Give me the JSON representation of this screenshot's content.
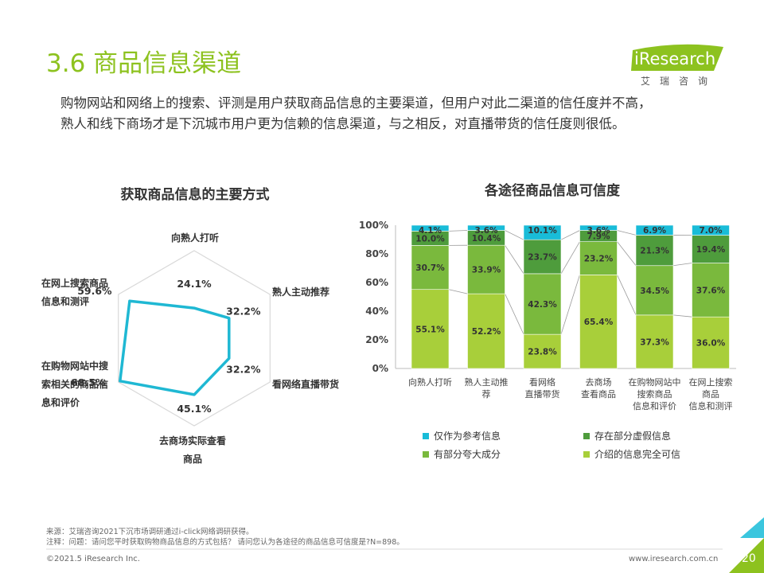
{
  "page": {
    "title": "3.6 商品信息渠道",
    "logo": {
      "word": "iResearch",
      "cn": "艾瑞咨询"
    },
    "description": [
      "购物网站和网络上的搜索、评测是用户获取商品信息的主要渠道，但用户对此二渠道的信任度并不高，",
      "熟人和线下商场才是下沉城市用户更为信赖的信息渠道，与之相反，对直播带货的信任度则很低。"
    ],
    "source": "来源：艾瑞咨询2021下沉市场调研通过i-click网络调研获得。",
    "note": "注释：问题：请问您平时获取购物商品信息的方式包括？ 请问您认为各途径的商品信息可信度是?N=898。",
    "copyright": "©2021.5 iResearch Inc.",
    "website": "www.iresearch.com.cn",
    "page_number": "20"
  },
  "colors": {
    "title_green": "#8dc21f",
    "radar_line": "#1fb8d3",
    "cyan": "#19bcd8",
    "dark_green": "#4e9c3c",
    "mid_green": "#7ab93d",
    "light_green": "#a8cf3a",
    "grid": "#d9d9d9"
  },
  "chart_data": [
    {
      "type": "radar",
      "title": "获取商品信息的主要方式",
      "axes": [
        "向熟人打听",
        "熟人主动推荐",
        "看网络直播带货",
        "去商场实际查看商品",
        "在购物网站中搜索相关的商品信息和评价",
        "在网上搜索商品信息和测评"
      ],
      "values": [
        24.1,
        32.2,
        32.2,
        45.1,
        68.5,
        59.6
      ],
      "value_labels": [
        "24.1%",
        "32.2%",
        "32.2%",
        "45.1%",
        "68.5%",
        "59.6%"
      ],
      "axis_label_lines": [
        [
          "向熟人打听"
        ],
        [
          "熟人主动推荐"
        ],
        [
          "看网络直播带货"
        ],
        [
          "去商场实际查看",
          "商品"
        ],
        [
          "在购物网站中搜",
          "索相关的商品信",
          "息和评价"
        ],
        [
          "在网上搜索商品",
          "信息和测评"
        ]
      ],
      "rmax": 70
    },
    {
      "type": "bar",
      "stacked": true,
      "title": "各途径商品信息可信度",
      "categories": [
        "向熟人打听",
        "熟人主动推荐",
        "看网络直播带货",
        "去商场查看商品",
        "在购物网站中搜索商品信息和评价",
        "在网上搜索商品信息和测评"
      ],
      "category_label_lines": [
        [
          "向熟人打听"
        ],
        [
          "熟人主动推",
          "荐"
        ],
        [
          "看网络",
          "直播带货"
        ],
        [
          "去商场",
          "查看商品"
        ],
        [
          "在购物网站中",
          "搜索商品",
          "信息和评价"
        ],
        [
          "在网上搜索",
          "商品",
          "信息和测评"
        ]
      ],
      "series": [
        {
          "name": "介绍的信息完全可信",
          "values": [
            55.1,
            52.2,
            23.8,
            65.4,
            37.3,
            36.0
          ],
          "labels": [
            "55.1%",
            "52.2%",
            "23.8%",
            "65.4%",
            "37.3%",
            "36.0%"
          ]
        },
        {
          "name": "有部分夸大成分",
          "values": [
            30.7,
            33.9,
            42.3,
            23.2,
            34.5,
            37.6
          ],
          "labels": [
            "30.7%",
            "33.9%",
            "42.3%",
            "23.2%",
            "34.5%",
            "37.6%"
          ]
        },
        {
          "name": "存在部分虚假信息",
          "values": [
            10.0,
            10.4,
            23.7,
            7.9,
            21.3,
            19.4
          ],
          "labels": [
            "10.0%",
            "10.4%",
            "23.7%",
            "7.9%",
            "21.3%",
            "19.4%"
          ]
        },
        {
          "name": "仅作为参考信息",
          "values": [
            4.1,
            3.6,
            10.1,
            3.6,
            6.9,
            7.0
          ],
          "labels": [
            "4.1%",
            "3.6%",
            "10.1%",
            "3.6%",
            "6.9%",
            "7.0%"
          ]
        }
      ],
      "y_ticks": [
        "0%",
        "20%",
        "40%",
        "60%",
        "80%",
        "100%"
      ],
      "ylim": [
        0,
        100
      ],
      "legend": [
        "仅作为参考信息",
        "存在部分虚假信息",
        "有部分夸大成分",
        "介绍的信息完全可信"
      ],
      "legend_position": "bottom"
    }
  ]
}
